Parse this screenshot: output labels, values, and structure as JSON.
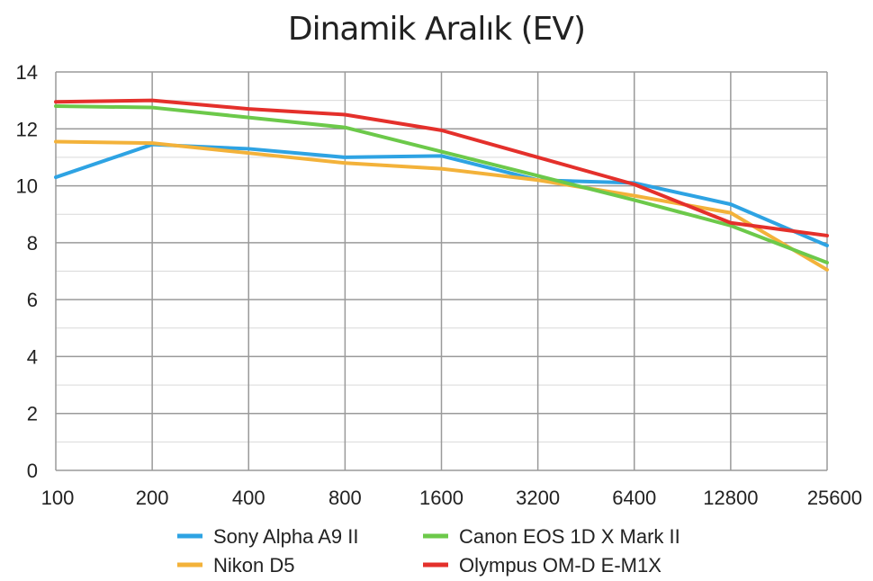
{
  "chart_data": {
    "type": "line",
    "title": "Dinamik Aralık (EV)",
    "xlabel": "",
    "ylabel": "",
    "x": [
      "100",
      "200",
      "400",
      "800",
      "1600",
      "3200",
      "6400",
      "12800",
      "25600"
    ],
    "y_ticks": [
      "0",
      "2",
      "4",
      "6",
      "8",
      "10",
      "12",
      "14"
    ],
    "ylim": [
      0,
      14
    ],
    "grid": true,
    "legend_position": "bottom",
    "series": [
      {
        "name": "Sony Alpha A9 II",
        "color": "#2ea3e3",
        "values": [
          10.3,
          11.45,
          11.3,
          11.0,
          11.05,
          10.2,
          10.1,
          9.35,
          7.9
        ]
      },
      {
        "name": "Nikon D5",
        "color": "#f3b23a",
        "values": [
          11.55,
          11.5,
          11.15,
          10.8,
          10.6,
          10.2,
          9.65,
          9.05,
          7.05
        ]
      },
      {
        "name": "Canon EOS 1D X Mark II",
        "color": "#6cc94a",
        "values": [
          12.8,
          12.75,
          12.4,
          12.05,
          11.2,
          10.35,
          9.5,
          8.6,
          7.3
        ]
      },
      {
        "name": "Olympus OM-D E-M1X",
        "color": "#e4302b",
        "values": [
          12.95,
          13.0,
          12.7,
          12.5,
          11.95,
          11.0,
          10.05,
          8.7,
          8.25
        ]
      }
    ]
  }
}
